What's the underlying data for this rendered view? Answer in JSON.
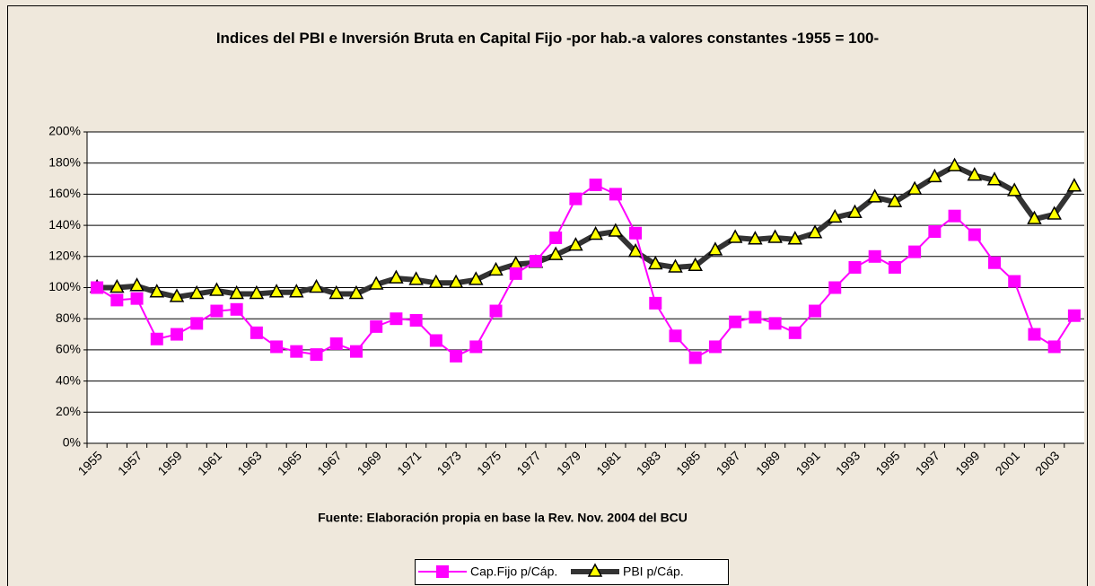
{
  "chart_data": {
    "type": "line",
    "title": "Indices del PBI e Inversión Bruta en Capital Fijo -por hab.-a valores constantes -1955 = 100-",
    "annotation": "Fuente: Elaboración propia en base la Rev. Nov. 2004 del BCU",
    "categories": [
      "1955",
      null,
      "1957",
      null,
      "1959",
      null,
      "1961",
      null,
      "1963",
      null,
      "1965",
      null,
      "1967",
      null,
      "1969",
      null,
      "1971",
      null,
      "1973",
      null,
      "1975",
      null,
      "1977",
      null,
      "1979",
      null,
      "1981",
      null,
      "1983",
      null,
      "1985",
      null,
      "1987",
      null,
      "1989",
      null,
      "1991",
      null,
      "1993",
      null,
      "1995",
      null,
      "1997",
      null,
      "1999",
      null,
      "2001",
      null,
      "2003",
      null
    ],
    "series": [
      {
        "name": "Cap.Fijo p/Cáp.",
        "color": "#ff00ff",
        "marker": "square",
        "values": [
          100,
          92,
          93,
          67,
          70,
          77,
          85,
          86,
          71,
          62,
          59,
          57,
          64,
          59,
          75,
          80,
          79,
          66,
          56,
          62,
          85,
          109,
          117,
          132,
          157,
          166,
          160,
          135,
          90,
          69,
          55,
          62,
          78,
          81,
          77,
          71,
          85,
          100,
          113,
          120,
          113,
          123,
          136,
          146,
          134,
          116,
          104,
          70,
          62,
          82
        ]
      },
      {
        "name": "PBI p/Cáp.",
        "color": "#333333",
        "marker": "triangle",
        "values": [
          100,
          100,
          101,
          97,
          94,
          96,
          98,
          96,
          96,
          97,
          97,
          100,
          96,
          96,
          102,
          106,
          105,
          103,
          103,
          105,
          111,
          115,
          116,
          121,
          127,
          134,
          136,
          123,
          115,
          113,
          114,
          124,
          132,
          131,
          132,
          131,
          135,
          145,
          148,
          158,
          155,
          163,
          171,
          178,
          172,
          169,
          162,
          144,
          147,
          165
        ]
      }
    ],
    "ylim": [
      0,
      200
    ],
    "yticks": [
      {
        "value": 0,
        "label": "0%"
      },
      {
        "value": 20,
        "label": "20%"
      },
      {
        "value": 40,
        "label": "40%"
      },
      {
        "value": 60,
        "label": "60%"
      },
      {
        "value": 80,
        "label": "80%"
      },
      {
        "value": 100,
        "label": "100%"
      },
      {
        "value": 120,
        "label": "120%"
      },
      {
        "value": 140,
        "label": "140%"
      },
      {
        "value": 160,
        "label": "160%"
      },
      {
        "value": 180,
        "label": "180%"
      },
      {
        "value": 200,
        "label": "200%"
      }
    ],
    "grid": true,
    "legend": "bottom"
  }
}
